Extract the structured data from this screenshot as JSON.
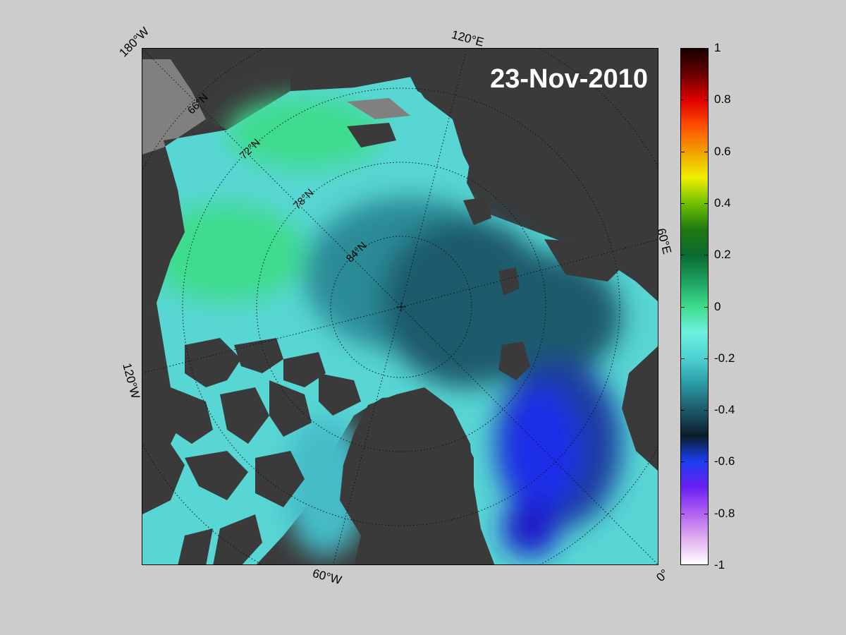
{
  "map": {
    "date": "23-Nov-2010",
    "longitude_labels": {
      "lon_180w": "180°W",
      "lon_120e": "120°E",
      "lon_60e": "60°E",
      "lon_120w": "120°W",
      "lon_60w": "60°W",
      "lon_0": "0°"
    },
    "latitude_labels": {
      "lat_66n": "66°N",
      "lat_72n": "72°N",
      "lat_78n": "78°N",
      "lat_84n": "84°N"
    },
    "colors": {
      "land": "#3a3a3a",
      "ice_shelf": "#808080",
      "ocean_low": "#5fe0d8",
      "ocean_mid": "#2a8a96",
      "ocean_deep": "#1d5a6c",
      "anomaly_positive": "#3ddc8c",
      "anomaly_negative": "#1a2ee8"
    }
  },
  "colorbar": {
    "ticks": [
      "1",
      "0.8",
      "0.6",
      "0.4",
      "0.2",
      "0",
      "-0.2",
      "-0.4",
      "-0.6",
      "-0.8",
      "-1"
    ],
    "range": [
      -1,
      1
    ]
  }
}
